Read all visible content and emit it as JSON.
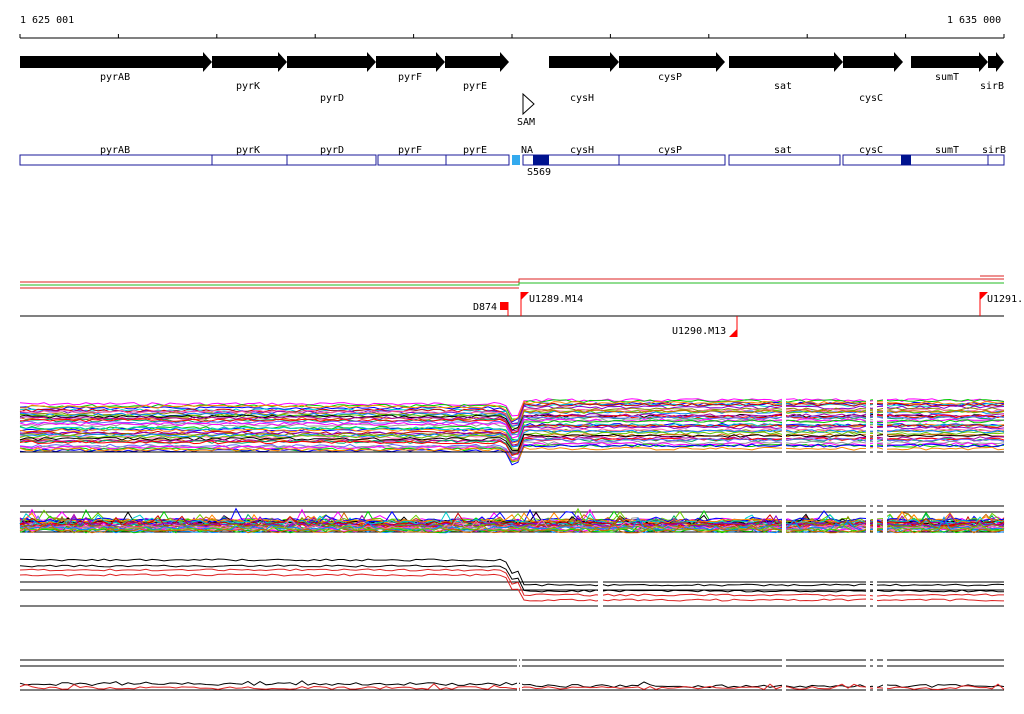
{
  "coords": {
    "start": "1 625 001",
    "end": "1 635 000"
  },
  "genes": [
    "pyrAB",
    "pyrK",
    "pyrD",
    "pyrF",
    "pyrE",
    "cysH",
    "cysP",
    "sat",
    "cysC",
    "sumT",
    "sirB"
  ],
  "riboswitch": {
    "label": "SAM"
  },
  "operon_labels": [
    "pyrAB",
    "pyrK",
    "pyrD",
    "pyrF",
    "pyrE",
    "NA",
    "cysH",
    "cysP",
    "sat",
    "cysC",
    "sumT",
    "sirB"
  ],
  "segment_labels": [
    "S569"
  ],
  "markers": [
    "D874",
    "U1289.M14",
    "U1290.M13",
    "U1291."
  ],
  "colors": {
    "gene_arrow": "#000000",
    "operon_box": "#1a1a99",
    "na_box": "#33aaee",
    "segment_fill": "#00138f",
    "marker": "#ff0000",
    "track_red": "#dd2222",
    "track_green": "#22bb22"
  },
  "icons": [
    "gene-arrow-icon",
    "riboswitch-triangle-icon",
    "flag-marker-icon"
  ]
}
